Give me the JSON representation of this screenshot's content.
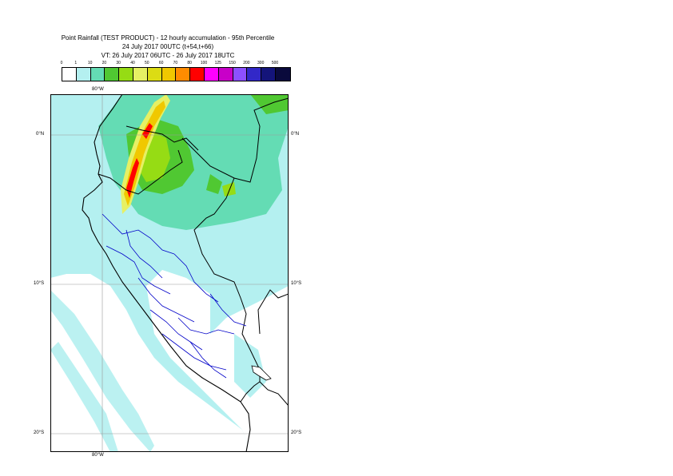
{
  "title": {
    "line1": "Point Rainfall (TEST PRODUCT) - 12 hourly accumulation - 95th Percentile",
    "line2": "24 July 2017 00UTC (t+54,t+66)",
    "line3": "VT: 26 July 2017 06UTC - 26 July 2017 18UTC"
  },
  "legend": {
    "ticks": [
      "0",
      "1",
      "10",
      "20",
      "30",
      "40",
      "50",
      "60",
      "70",
      "80",
      "100",
      "125",
      "150",
      "200",
      "300",
      "500"
    ],
    "colors": [
      "#ffffff",
      "#b4f0f0",
      "#64dcb4",
      "#50c832",
      "#96dc14",
      "#e6f064",
      "#dcdc14",
      "#f0c800",
      "#ff8c00",
      "#ff0000",
      "#ff00ff",
      "#c800c8",
      "#8c50ff",
      "#3228c8",
      "#14147a",
      "#0a0a3c"
    ]
  },
  "axes": {
    "lon_top": "80°W",
    "lon_bottom": "80°W",
    "lat_left": [
      "0°N",
      "10°S",
      "20°S"
    ],
    "lat_right": [
      "0°N",
      "10°S",
      "20°S"
    ]
  },
  "map": {
    "colors": {
      "ocean_light": "#b4f0f0",
      "land_green": "#64dcb4",
      "green": "#50c832",
      "yellow_green": "#96dc14",
      "yellow": "#e6f064",
      "orange": "#f0c800",
      "red": "#ff0000",
      "border_black": "#000000",
      "border_blue": "#0000c8",
      "grid": "#999999"
    }
  }
}
